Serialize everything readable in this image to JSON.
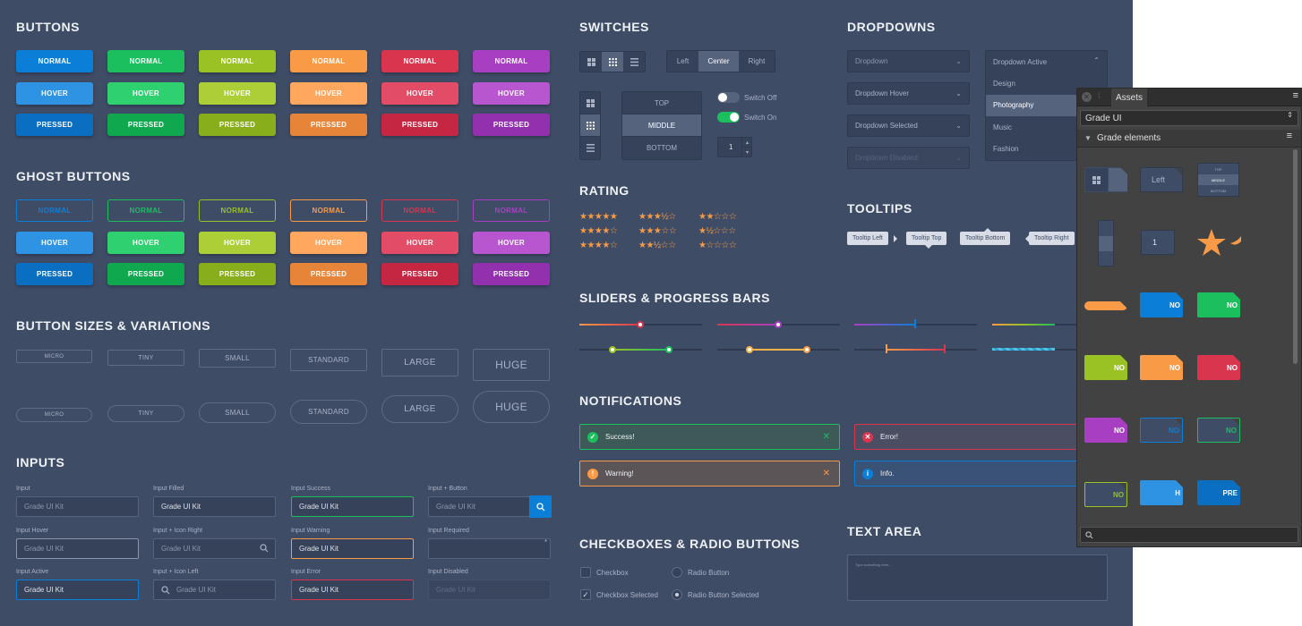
{
  "sections": {
    "buttons": "BUTTONS",
    "ghost": "GHOST BUTTONS",
    "sizes": "BUTTON SIZES & VARIATIONS",
    "inputs": "INPUTS",
    "switches": "SWITCHES",
    "rating": "RATING",
    "sliders": "SLIDERS & PROGRESS BARS",
    "notifications": "NOTIFICATIONS",
    "checkboxes": "CHECKBOXES & RADIO BUTTONS",
    "dropdowns": "DROPDOWNS",
    "tooltips": "TOOLTIPS",
    "textarea": "TEXT AREA"
  },
  "colors": {
    "blue": "#0b7fd8",
    "green": "#1bbf5e",
    "lime": "#9ac224",
    "orange": "#f99a47",
    "red": "#d9354f",
    "purple": "#a83fc2",
    "bg": "#3f4c66"
  },
  "buttons": {
    "normal": "NORMAL",
    "hover": "HOVER",
    "pressed": "PRESSED"
  },
  "sizes": {
    "micro": "MICRO",
    "tiny": "TINY",
    "small": "SMALL",
    "standard": "STANDARD",
    "large": "LARGE",
    "huge": "HUGE"
  },
  "inputs": {
    "input": "Input",
    "input_filled": "Input Filled",
    "input_success": "Input Success",
    "input_button": "Input + Button",
    "input_hover": "Input Hover",
    "input_icon_right": "Input + Icon Right",
    "input_warning": "Input Warning",
    "input_required": "Input Required",
    "input_active": "Input Active",
    "input_icon_left": "Input + Icon Left",
    "input_error": "Input Error",
    "input_disabled": "Input Disabled",
    "value": "Grade UI Kit",
    "active_value": "Grade UI Kit"
  },
  "switches": {
    "left": "Left",
    "center": "Center",
    "right": "Right",
    "top": "TOP",
    "middle": "MIDDLE",
    "bottom": "BOTTOM",
    "off": "Switch Off",
    "on": "Switch On",
    "stepper": "1"
  },
  "rating": {
    "r1": "★★★★★",
    "r2": "★★★★☆",
    "r3": "★★★★☆",
    "r4": "★★★½☆",
    "r5": "★★★☆☆",
    "r6": "★★½☆☆",
    "r7": "★★☆☆☆",
    "r8": "★½☆☆☆",
    "r9": "★☆☆☆☆"
  },
  "notifications": {
    "success": "Success!",
    "error": "Error!",
    "warning": "Warning!",
    "info": "Info.",
    "close": "✕"
  },
  "checkboxes": {
    "checkbox": "Checkbox",
    "checkbox_selected": "Checkbox Selected",
    "radio": "Radio Button",
    "radio_selected": "Radio Button Selected"
  },
  "dropdowns": {
    "dropdown": "Dropdown",
    "hover": "Dropdown Hover",
    "selected": "Dropdown Selected",
    "disabled": "Dropdown Disabled",
    "active": "Dropdown Active",
    "options": [
      "Design",
      "Photography",
      "Music",
      "Fashion"
    ]
  },
  "tooltips": {
    "left": "Tooltip Left",
    "top": "Tooltip Top",
    "bottom": "Tooltip Bottom",
    "right": "Tooltip Right"
  },
  "textarea": {
    "placeholder": "Type something here..."
  },
  "panel": {
    "title": "Assets",
    "library": "Grade UI",
    "category": "Grade elements",
    "tile_left": "Left",
    "tile_stepper": "1",
    "tile_top": "TOP",
    "tile_middle": "MIDDLE",
    "tile_bottom": "BOTTOM",
    "tile_no": "NO",
    "tile_h": "H",
    "tile_pre": "PRE",
    "icon_close": "close-icon",
    "icon_menu": "menu-icon"
  }
}
